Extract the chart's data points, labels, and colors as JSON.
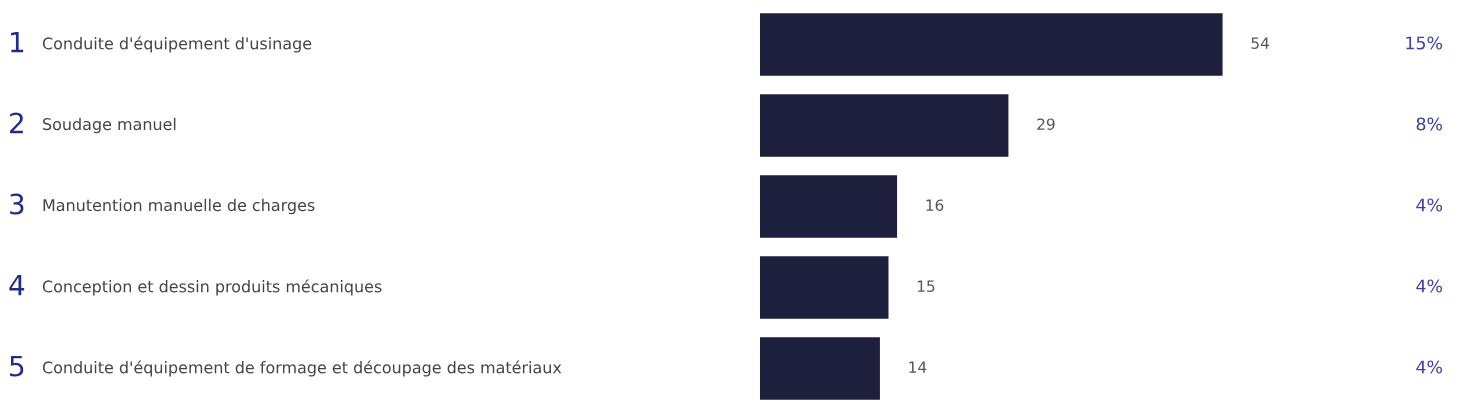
{
  "chart_data": {
    "type": "bar",
    "orientation": "horizontal",
    "categories": [
      "Conduite d'équipement d'usinage",
      "Soudage manuel",
      "Manutention manuelle de charges",
      "Conception et dessin produits mécaniques",
      "Conduite d'équipement de formage et découpage des matériaux"
    ],
    "values": [
      54,
      29,
      16,
      15,
      14
    ],
    "color": "#1e1f3d",
    "data_labels": true,
    "annotations": [
      "1",
      "2",
      "3",
      "4",
      "5",
      "15%",
      "8%",
      "4%",
      "4%",
      "4%"
    ]
  }
}
